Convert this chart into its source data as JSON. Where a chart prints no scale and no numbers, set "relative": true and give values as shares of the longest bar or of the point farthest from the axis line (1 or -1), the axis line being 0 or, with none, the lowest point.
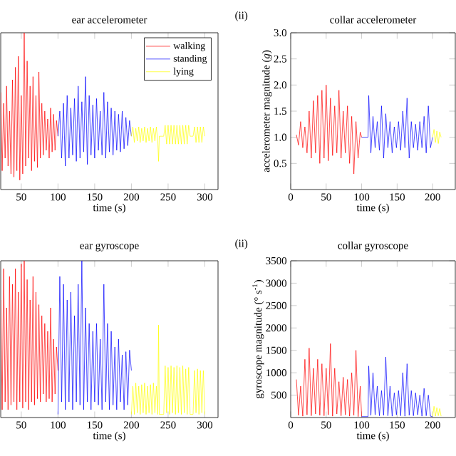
{
  "chart_data": [
    {
      "type": "line",
      "title": "ear accelerometer",
      "xlabel": "time (s)",
      "relative": true,
      "xlim": [
        22,
        318
      ],
      "xticks": [
        50,
        100,
        150,
        200,
        250,
        300
      ],
      "legend": "top right",
      "series": [
        {
          "name": "walking",
          "color": "#ff0000",
          "x": [
            22,
            24,
            26,
            28,
            30,
            32,
            34,
            36,
            38,
            40,
            42,
            44,
            46,
            48,
            50,
            52,
            54,
            56,
            58,
            60,
            62,
            64,
            66,
            68,
            70,
            72,
            74,
            76,
            78,
            80,
            82,
            84,
            86,
            88,
            90,
            92,
            94,
            96,
            98,
            100
          ],
          "values": [
            0.62,
            0.12,
            0.55,
            0.2,
            0.66,
            0.15,
            0.5,
            0.1,
            0.7,
            0.08,
            0.78,
            0.12,
            0.85,
            0.06,
            0.6,
            0.1,
            1.0,
            0.15,
            0.82,
            0.2,
            0.66,
            0.12,
            0.72,
            0.18,
            0.6,
            0.14,
            0.75,
            0.2,
            0.55,
            0.22,
            0.5,
            0.25,
            0.45,
            0.2,
            0.52,
            0.24,
            0.48,
            0.25,
            0.44,
            0.34
          ]
        },
        {
          "name": "standing",
          "color": "#0000ff",
          "x": [
            100,
            102.5,
            105,
            107.5,
            110,
            112.5,
            115,
            117.5,
            120,
            122.5,
            125,
            127.5,
            130,
            132.5,
            135,
            137.5,
            140,
            142.5,
            145,
            147.5,
            150,
            152.5,
            155,
            157.5,
            160,
            162.5,
            165,
            167.5,
            170,
            172.5,
            175,
            177.5,
            180,
            182.5,
            185,
            187.5,
            190,
            192.5,
            195,
            197.5,
            200
          ],
          "values": [
            0.34,
            0.5,
            0.2,
            0.55,
            0.15,
            0.6,
            0.2,
            0.52,
            0.22,
            0.58,
            0.18,
            0.66,
            0.2,
            0.56,
            0.24,
            0.72,
            0.16,
            0.6,
            0.22,
            0.54,
            0.2,
            0.58,
            0.25,
            0.5,
            0.22,
            0.62,
            0.2,
            0.56,
            0.24,
            0.52,
            0.22,
            0.5,
            0.25,
            0.48,
            0.24,
            0.5,
            0.26,
            0.46,
            0.28,
            0.44,
            0.34
          ]
        },
        {
          "name": "lying",
          "color": "#ffff00",
          "x": [
            200,
            202,
            204,
            206,
            208,
            210,
            212,
            214,
            216,
            218,
            220,
            222,
            224,
            226,
            228,
            230,
            232,
            234,
            236,
            237,
            238,
            240,
            244,
            246,
            248,
            250,
            252,
            254,
            256,
            258,
            260,
            262,
            264,
            266,
            268,
            270,
            272,
            274,
            276,
            278,
            280,
            284,
            286,
            288,
            290,
            292,
            294,
            296,
            298,
            300
          ],
          "values": [
            0.34,
            0.4,
            0.3,
            0.39,
            0.31,
            0.4,
            0.3,
            0.39,
            0.31,
            0.4,
            0.3,
            0.39,
            0.31,
            0.4,
            0.3,
            0.39,
            0.31,
            0.4,
            0.3,
            0.18,
            0.34,
            0.34,
            0.34,
            0.41,
            0.29,
            0.41,
            0.29,
            0.41,
            0.29,
            0.41,
            0.29,
            0.41,
            0.29,
            0.41,
            0.29,
            0.41,
            0.29,
            0.41,
            0.29,
            0.41,
            0.34,
            0.34,
            0.4,
            0.3,
            0.4,
            0.3,
            0.4,
            0.3,
            0.4,
            0.34
          ]
        }
      ]
    },
    {
      "type": "line",
      "title": "collar accelerometer",
      "xlabel": "time (s)",
      "ylabel": "accelerometer magnitude (*g*)",
      "annotations": [
        "(ii)"
      ],
      "xlim": [
        0,
        232
      ],
      "xticks": [
        0,
        50,
        100,
        150,
        200
      ],
      "ylim": [
        0,
        3
      ],
      "yticks": [
        {
          "value": 0.5,
          "label": "0.5"
        },
        {
          "value": 1,
          "label": "1.0"
        },
        1.5,
        {
          "value": 2,
          "label": "2.0"
        },
        2.5,
        {
          "value": 3,
          "label": "3.0"
        }
      ],
      "series": [
        {
          "color": "#ff0000",
          "x": [
            8,
            11,
            14,
            17,
            20,
            23,
            26,
            29,
            32,
            35,
            38,
            41,
            44,
            47,
            50,
            53,
            56,
            59,
            62,
            65,
            68,
            71,
            74,
            77,
            80,
            83,
            86,
            89,
            92,
            95,
            98,
            100
          ],
          "values": [
            1.05,
            0.85,
            1.3,
            0.8,
            1.2,
            0.7,
            1.5,
            0.6,
            1.7,
            0.7,
            1.8,
            0.5,
            1.9,
            0.6,
            2.0,
            0.55,
            1.75,
            0.65,
            1.6,
            0.7,
            1.9,
            0.6,
            1.5,
            0.7,
            1.6,
            0.5,
            1.4,
            0.3,
            1.3,
            0.6,
            1.1,
            1.0
          ]
        },
        {
          "color": "#0000ff",
          "x": [
            100,
            109,
            110,
            113,
            116,
            119,
            122,
            125,
            128,
            131,
            134,
            137,
            140,
            143,
            146,
            149,
            152,
            155,
            158,
            161,
            164,
            167,
            170,
            173,
            176,
            179,
            182,
            185,
            188,
            191,
            194,
            197,
            200
          ],
          "values": [
            1.0,
            1.0,
            1.8,
            0.7,
            1.4,
            0.8,
            1.3,
            0.75,
            1.6,
            0.6,
            1.45,
            0.8,
            1.3,
            0.7,
            1.2,
            0.8,
            1.3,
            0.75,
            1.5,
            0.8,
            1.75,
            0.6,
            1.3,
            0.8,
            1.25,
            0.75,
            1.3,
            0.8,
            1.4,
            0.7,
            1.6,
            0.8,
            1.0
          ]
        },
        {
          "color": "#ffff00",
          "x": [
            200,
            202,
            204,
            206,
            208,
            210,
            212
          ],
          "values": [
            1.0,
            1.15,
            0.9,
            1.12,
            0.88,
            1.1,
            1.0
          ]
        }
      ]
    },
    {
      "type": "line",
      "title": "ear gyroscope",
      "xlabel": "time (s)",
      "relative": true,
      "xlim": [
        22,
        318
      ],
      "xticks": [
        50,
        100,
        150,
        200,
        250,
        300
      ],
      "series": [
        {
          "color": "#ff0000",
          "x": [
            22,
            24,
            26,
            28,
            30,
            32,
            34,
            36,
            38,
            40,
            42,
            44,
            46,
            48,
            50,
            52,
            54,
            56,
            58,
            60,
            62,
            64,
            66,
            68,
            70,
            72,
            74,
            76,
            78,
            80,
            82,
            84,
            86,
            88,
            90,
            92,
            94,
            96,
            98,
            100
          ],
          "values": [
            0.75,
            0.05,
            0.95,
            0.1,
            0.7,
            0.05,
            0.9,
            0.08,
            0.85,
            0.1,
            0.95,
            0.05,
            0.8,
            0.1,
            0.98,
            0.06,
            1.0,
            0.1,
            0.88,
            0.05,
            0.75,
            0.1,
            0.9,
            0.08,
            0.8,
            0.12,
            0.72,
            0.1,
            0.65,
            0.15,
            0.6,
            0.1,
            0.55,
            0.12,
            0.7,
            0.1,
            0.5,
            0.15,
            0.45,
            0.3
          ]
        },
        {
          "color": "#0000ff",
          "x": [
            100,
            102.5,
            105,
            107.5,
            110,
            112.5,
            115,
            117.5,
            120,
            122.5,
            125,
            127.5,
            130,
            132.5,
            135,
            137.5,
            140,
            142.5,
            145,
            147.5,
            150,
            152.5,
            155,
            157.5,
            160,
            162.5,
            165,
            167.5,
            170,
            172.5,
            175,
            177.5,
            180,
            182.5,
            185,
            187.5,
            190,
            192.5,
            195,
            197.5,
            200
          ],
          "values": [
            0.02,
            0.9,
            0.1,
            0.85,
            0.05,
            0.75,
            0.1,
            0.8,
            0.05,
            0.65,
            0.1,
            0.85,
            0.08,
            1.0,
            0.05,
            0.7,
            0.1,
            0.6,
            0.05,
            0.55,
            0.1,
            0.6,
            0.08,
            0.5,
            0.05,
            0.85,
            0.1,
            0.6,
            0.05,
            0.55,
            0.08,
            0.45,
            0.05,
            0.5,
            0.1,
            0.4,
            0.05,
            0.42,
            0.08,
            0.43,
            0.3
          ]
        },
        {
          "color": "#ffff00",
          "x": [
            200,
            202,
            204,
            206,
            208,
            210,
            212,
            214,
            216,
            218,
            220,
            222,
            224,
            226,
            228,
            230,
            232,
            234,
            236,
            237,
            238,
            240,
            244,
            246,
            248,
            250,
            252,
            254,
            256,
            258,
            260,
            262,
            264,
            266,
            268,
            270,
            272,
            274,
            276,
            278,
            280,
            284,
            286,
            288,
            290,
            292,
            294,
            296,
            298,
            300
          ],
          "values": [
            0.02,
            0.2,
            0.02,
            0.22,
            0.03,
            0.2,
            0.02,
            0.21,
            0.03,
            0.22,
            0.02,
            0.2,
            0.03,
            0.21,
            0.02,
            0.22,
            0.03,
            0.2,
            0.02,
            0.59,
            0.02,
            0.02,
            0.02,
            0.33,
            0.03,
            0.32,
            0.02,
            0.33,
            0.03,
            0.32,
            0.02,
            0.33,
            0.03,
            0.32,
            0.02,
            0.33,
            0.03,
            0.31,
            0.02,
            0.32,
            0.02,
            0.02,
            0.3,
            0.03,
            0.31,
            0.02,
            0.3,
            0.03,
            0.3,
            0.02
          ]
        }
      ]
    },
    {
      "type": "line",
      "title": "collar gyroscope",
      "xlabel": "time (s)",
      "ylabel": "gyroscope magnitude (° s$^{-1}$)",
      "annotations": [
        "(ii)"
      ],
      "xlim": [
        0,
        232
      ],
      "xticks": [
        0,
        50,
        100,
        150,
        200
      ],
      "ylim": [
        0,
        3500
      ],
      "yticks": [
        500,
        1000,
        1500,
        2000,
        2500,
        3000,
        3500
      ],
      "series": [
        {
          "color": "#ff0000",
          "x": [
            8,
            11,
            14,
            17,
            20,
            23,
            26,
            29,
            32,
            35,
            38,
            41,
            44,
            47,
            50,
            53,
            56,
            59,
            62,
            65,
            68,
            71,
            74,
            77,
            80,
            83,
            86,
            89,
            92,
            95,
            98,
            100
          ],
          "values": [
            850,
            50,
            700,
            30,
            1300,
            60,
            1550,
            40,
            1100,
            80,
            1300,
            50,
            1200,
            40,
            1100,
            60,
            1650,
            30,
            1100,
            80,
            800,
            40,
            900,
            60,
            850,
            30,
            1000,
            50,
            1500,
            20,
            700,
            20
          ]
        },
        {
          "color": "#0000ff",
          "x": [
            100,
            109,
            110,
            113,
            116,
            119,
            122,
            125,
            128,
            131,
            134,
            137,
            140,
            143,
            146,
            149,
            152,
            155,
            158,
            161,
            164,
            167,
            170,
            173,
            176,
            179,
            182,
            185,
            188,
            191,
            194,
            197,
            200
          ],
          "values": [
            20,
            20,
            1150,
            50,
            1000,
            60,
            700,
            40,
            600,
            50,
            1350,
            40,
            700,
            30,
            550,
            60,
            600,
            40,
            1000,
            30,
            1200,
            50,
            600,
            40,
            550,
            60,
            500,
            30,
            650,
            40,
            500,
            30,
            20
          ]
        },
        {
          "color": "#ffff00",
          "x": [
            200,
            202,
            204,
            206,
            208,
            210,
            212
          ],
          "values": [
            20,
            250,
            30,
            220,
            40,
            200,
            30
          ]
        }
      ]
    }
  ]
}
